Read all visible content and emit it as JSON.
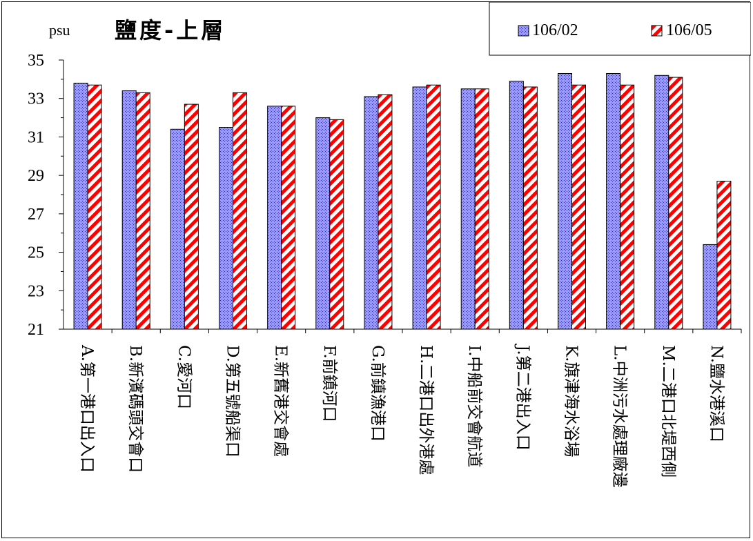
{
  "chart_data": {
    "type": "bar",
    "title": "鹽度-上層",
    "ylabel": "psu",
    "xlabel": "",
    "ylim": [
      21,
      35
    ],
    "yticks": [
      "35",
      "33",
      "31",
      "29",
      "27",
      "25",
      "23",
      "21"
    ],
    "legend_position": "top-right",
    "categories": [
      "A.第一港口出入口",
      "B.新濱碼頭交會口",
      "C.愛河口",
      "D.第五號船渠口",
      "E.新舊港交會處",
      "F.前鎮河口",
      "G.前鎮漁港口",
      "H.二港口出外港處",
      "I.中船前交會航道",
      "J.第二港出入口",
      "K.旗津海水浴場",
      "L.中洲污水處理廠邊",
      "M.二港口北堤西側",
      "N.鹽水港溪口"
    ],
    "series": [
      {
        "name": "106/02",
        "color": "#8080ff",
        "pattern": "dots",
        "values": [
          33.8,
          33.4,
          31.4,
          31.5,
          32.6,
          32.0,
          33.1,
          33.6,
          33.5,
          33.9,
          34.3,
          34.3,
          34.2,
          25.4
        ]
      },
      {
        "name": "106/05",
        "color": "#ff0000",
        "pattern": "diagonal-stripes",
        "values": [
          33.7,
          33.3,
          32.7,
          33.3,
          32.6,
          31.9,
          33.2,
          33.7,
          33.5,
          33.6,
          33.7,
          33.7,
          34.1,
          28.7
        ]
      }
    ]
  }
}
